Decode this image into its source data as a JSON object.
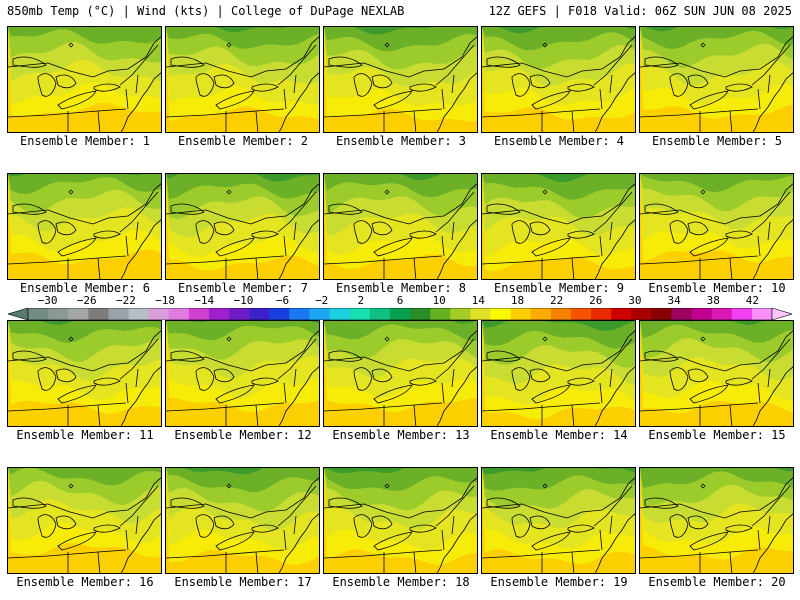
{
  "header": {
    "left": "850mb Temp (°C) | Wind (kts) | College of DuPage NEXLAB",
    "right": "12Z GEFS | F018 Valid: 06Z SUN JUN 08 2025"
  },
  "member_label_prefix": "Ensemble Member: ",
  "members": [
    {
      "label": "Ensemble Member: 1",
      "cold": 0.5
    },
    {
      "label": "Ensemble Member: 2",
      "cold": 0.6
    },
    {
      "label": "Ensemble Member: 3",
      "cold": 0.65
    },
    {
      "label": "Ensemble Member: 4",
      "cold": 0.6
    },
    {
      "label": "Ensemble Member: 5",
      "cold": 0.55
    },
    {
      "label": "Ensemble Member: 6",
      "cold": 0.5
    },
    {
      "label": "Ensemble Member: 7",
      "cold": 0.65
    },
    {
      "label": "Ensemble Member: 8",
      "cold": 0.6
    },
    {
      "label": "Ensemble Member: 9",
      "cold": 0.65
    },
    {
      "label": "Ensemble Member: 10",
      "cold": 0.45
    },
    {
      "label": "Ensemble Member: 11",
      "cold": 0.55
    },
    {
      "label": "Ensemble Member: 12",
      "cold": 0.5
    },
    {
      "label": "Ensemble Member: 13",
      "cold": 0.5
    },
    {
      "label": "Ensemble Member: 14",
      "cold": 0.7
    },
    {
      "label": "Ensemble Member: 15",
      "cold": 0.55
    },
    {
      "label": "Ensemble Member: 16",
      "cold": 0.45
    },
    {
      "label": "Ensemble Member: 17",
      "cold": 0.65
    },
    {
      "label": "Ensemble Member: 18",
      "cold": 0.65
    },
    {
      "label": "Ensemble Member: 19",
      "cold": 0.65
    },
    {
      "label": "Ensemble Member: 20",
      "cold": 0.55
    }
  ],
  "colorbar": {
    "labels": [
      "-30",
      "-26",
      "-22",
      "-18",
      "-14",
      "-10",
      "-6",
      "-2",
      "2",
      "6",
      "10",
      "14",
      "18",
      "22",
      "26",
      "30",
      "34",
      "38",
      "42"
    ],
    "min": -32,
    "max": 44,
    "colors": [
      "#5a7a74",
      "#748a84",
      "#8a9a92",
      "#a4a8a4",
      "#7c7c7c",
      "#9aa2aa",
      "#b8bec6",
      "#d89cd8",
      "#e07ce0",
      "#d040d0",
      "#a020d0",
      "#6e1cc8",
      "#3c20c8",
      "#1840e0",
      "#1c78f0",
      "#1ca8f0",
      "#1cd0e0",
      "#18e0b0",
      "#10c080",
      "#08a050",
      "#2c8c28",
      "#64b020",
      "#a4cc28",
      "#e0e028",
      "#fcf800",
      "#fcd000",
      "#fcac00",
      "#f88000",
      "#f45400",
      "#e82c00",
      "#d00000",
      "#a80000",
      "#880000",
      "#9c0460",
      "#c00090",
      "#d818b4",
      "#f040f0",
      "#f890f8",
      "#fcc8fc"
    ]
  }
}
